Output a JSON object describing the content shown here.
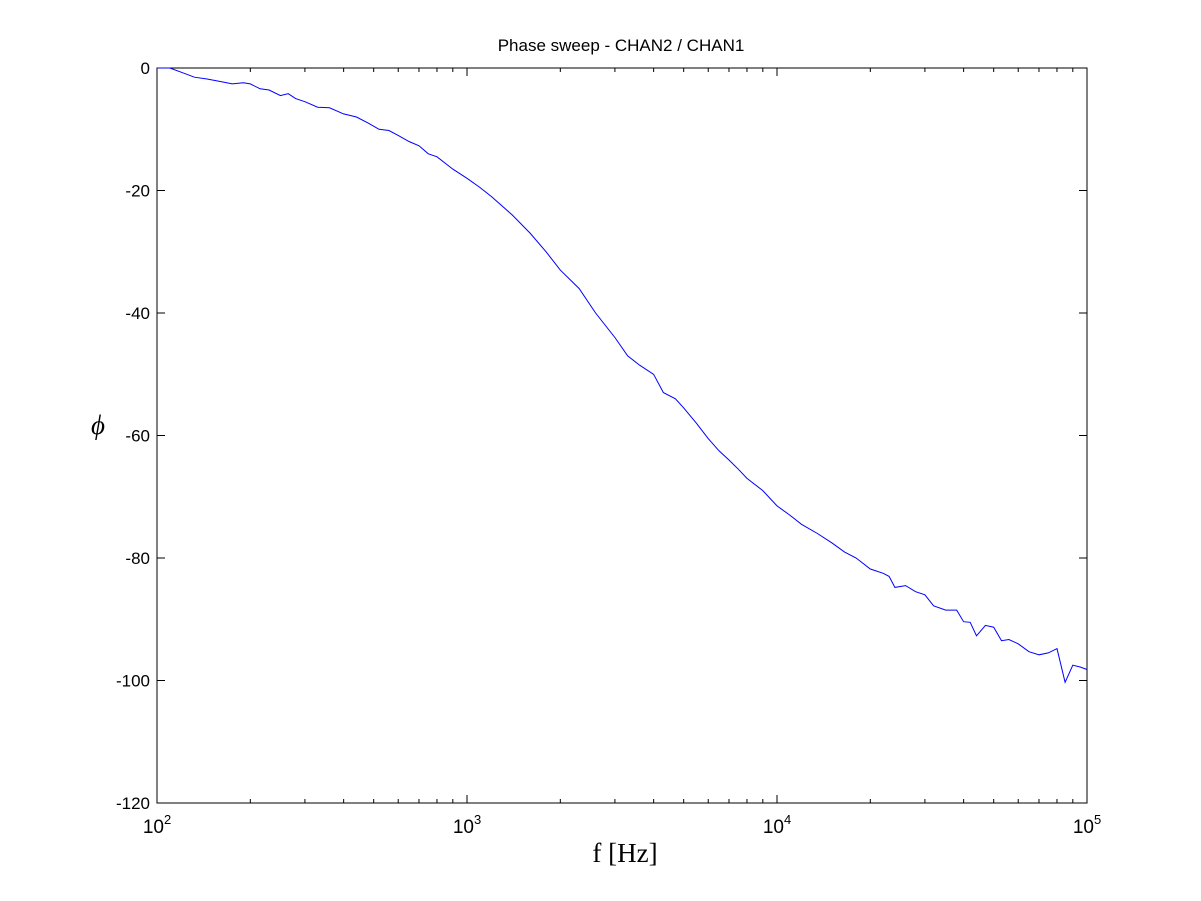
{
  "chart_data": {
    "type": "line",
    "title": "Phase sweep - CHAN2 / CHAN1",
    "xlabel": "f [Hz]",
    "ylabel": "ϕ",
    "xscale": "log",
    "xlim": [
      100,
      100000
    ],
    "ylim": [
      -120,
      0
    ],
    "yticks": [
      0,
      -20,
      -40,
      -60,
      -80,
      -100,
      -120
    ],
    "xticks": [
      {
        "value": 100,
        "base": "10",
        "exp": "2"
      },
      {
        "value": 1000,
        "base": "10",
        "exp": "3"
      },
      {
        "value": 10000,
        "base": "10",
        "exp": "4"
      },
      {
        "value": 100000,
        "base": "10",
        "exp": "5"
      }
    ],
    "grid": false,
    "line_color": "#0000ff",
    "series": [
      {
        "x": [
          100,
          110,
          120,
          132,
          145,
          160,
          175,
          190,
          200,
          215,
          230,
          250,
          265,
          280,
          300,
          330,
          360,
          400,
          440,
          480,
          520,
          560,
          600,
          650,
          700,
          750,
          800,
          900,
          1000,
          1100,
          1200,
          1400,
          1600,
          1800,
          2000,
          2300,
          2600,
          3000,
          3300,
          3600,
          4000,
          4300,
          4700,
          5000,
          5500,
          6000,
          6500,
          7000,
          7500,
          8000,
          9000,
          10000,
          11000,
          12000,
          13500,
          15000,
          16500,
          18000,
          20000,
          22000,
          23000,
          24000,
          26000,
          28000,
          30000,
          32000,
          35000,
          38000,
          40000,
          42000,
          44000,
          47000,
          50000,
          53000,
          56000,
          60000,
          65000,
          70000,
          75000,
          80000,
          85000,
          90000,
          95000,
          100000
        ],
        "y": [
          0,
          0,
          -0.7,
          -1.5,
          -1.8,
          -2.2,
          -2.6,
          -2.4,
          -2.6,
          -3.4,
          -3.6,
          -4.5,
          -4.2,
          -5,
          -5.5,
          -6.4,
          -6.5,
          -7.5,
          -8,
          -9,
          -10,
          -10.2,
          -11,
          -12,
          -12.7,
          -14,
          -14.5,
          -16.5,
          -18,
          -19.5,
          -21,
          -24,
          -27,
          -30,
          -33,
          -36,
          -40,
          -44,
          -47,
          -48.5,
          -50,
          -53,
          -54,
          -55.5,
          -58,
          -60.5,
          -62.5,
          -64,
          -65.5,
          -67,
          -69,
          -71.5,
          -73,
          -74.5,
          -76,
          -77.5,
          -79,
          -80,
          -81.8,
          -82.5,
          -83,
          -84.8,
          -84.5,
          -85.5,
          -86,
          -87.8,
          -88.5,
          -88.5,
          -90.4,
          -90.5,
          -92.7,
          -91,
          -91.3,
          -93.5,
          -93.3,
          -94,
          -95.3,
          -95.8,
          -95.5,
          -94.8,
          -100.3,
          -97.5,
          -97.8,
          -98.2
        ]
      }
    ]
  }
}
